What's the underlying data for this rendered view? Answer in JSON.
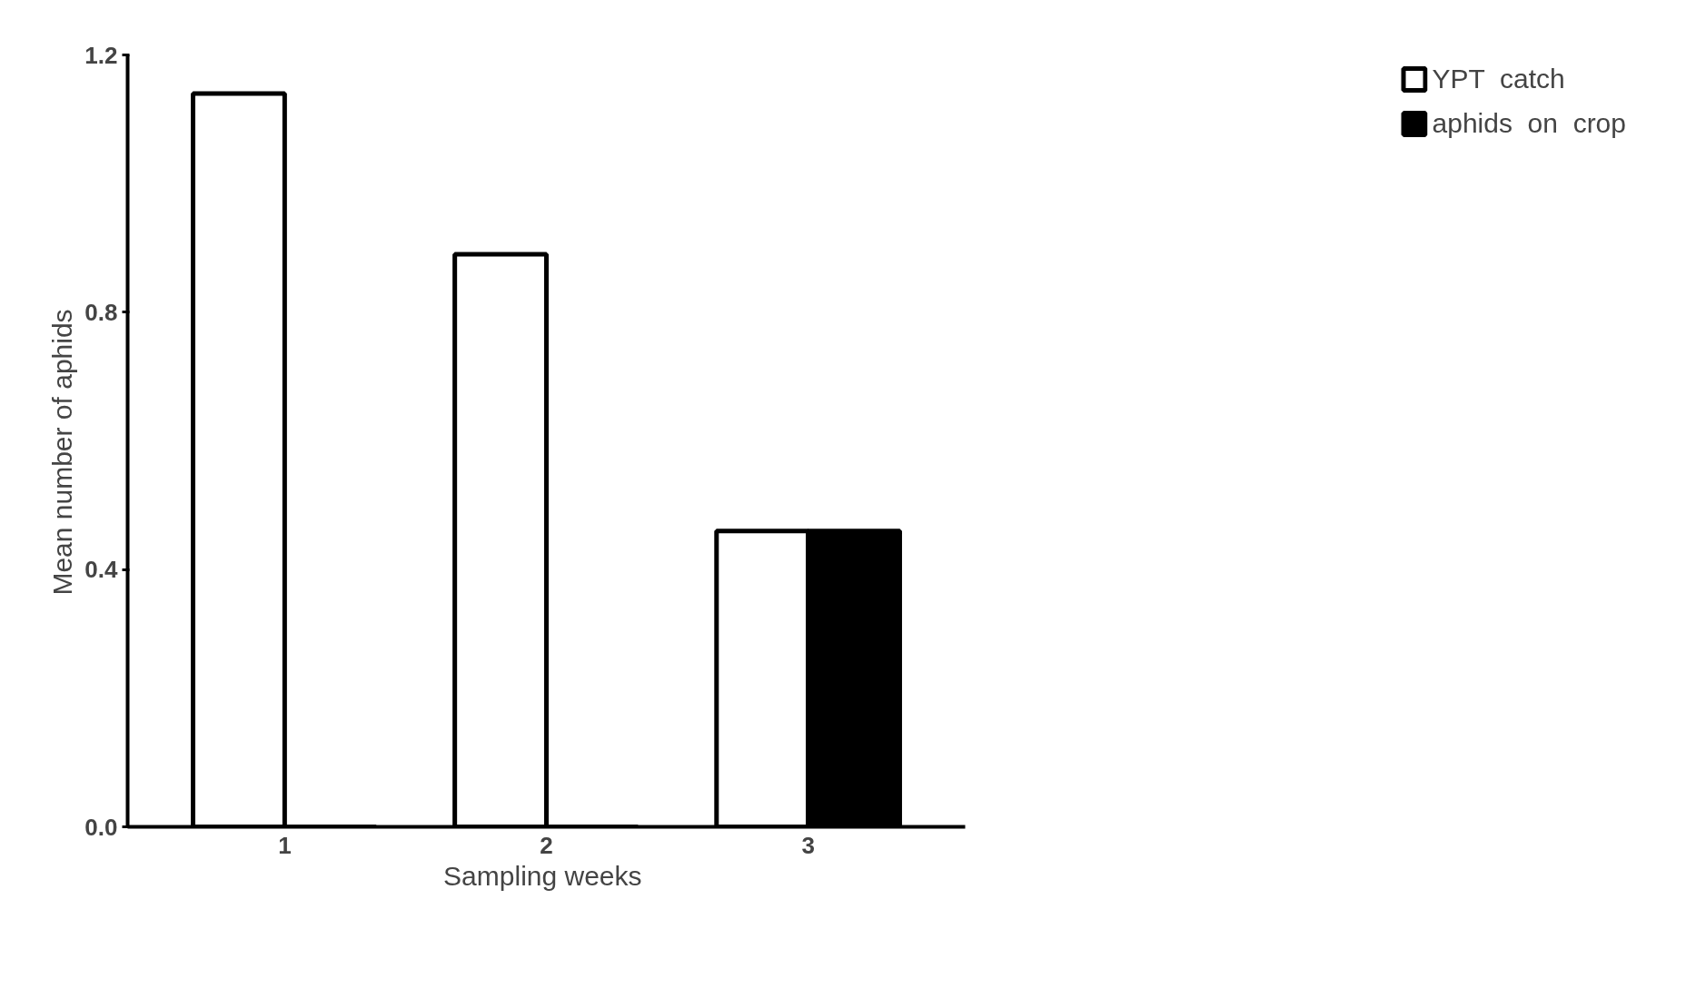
{
  "chart_data": {
    "type": "bar",
    "xlabel": "Sampling  weeks",
    "ylabel": "Mean  number  of  aphids",
    "categories": [
      "1",
      "2",
      "3"
    ],
    "series": [
      {
        "name": "YPT  catch",
        "color": "#ffffff",
        "values": [
          1.14,
          0.89,
          0.46
        ]
      },
      {
        "name": "aphids  on  crop",
        "color": "#000000",
        "values": [
          0,
          0,
          0.46
        ]
      }
    ],
    "ylim": [
      0,
      1.2
    ],
    "yticks": [
      {
        "value": 0,
        "label": "0.0"
      },
      {
        "value": 0.4,
        "label": "0.4"
      },
      {
        "value": 0.8,
        "label": "0.8"
      },
      {
        "value": 1.2,
        "label": "1.2"
      }
    ],
    "grid": false,
    "legend": "right"
  }
}
